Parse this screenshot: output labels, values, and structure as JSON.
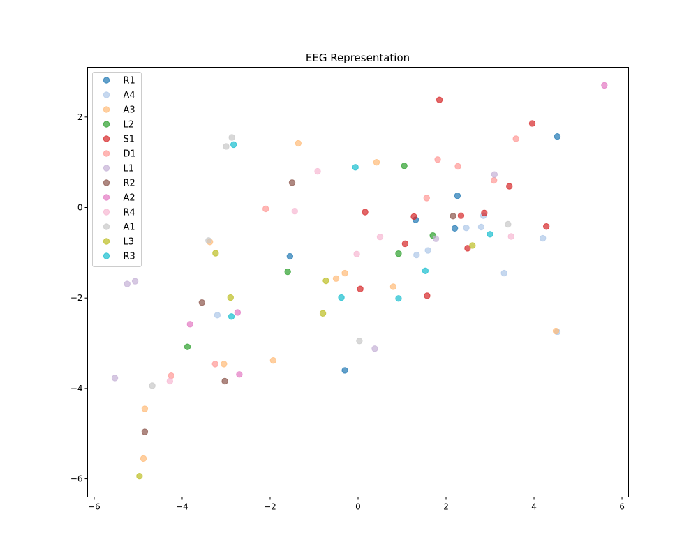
{
  "chart_data": {
    "type": "scatter",
    "title": "EEG Representation",
    "xlabel": "",
    "ylabel": "",
    "xlim": [
      -6.15,
      6.15
    ],
    "ylim": [
      -6.4,
      3.1
    ],
    "xticks": [
      -6,
      -4,
      -2,
      0,
      2,
      4,
      6
    ],
    "yticks": [
      -6,
      -4,
      -2,
      0,
      2
    ],
    "xtick_labels": [
      "−6",
      "−4",
      "−2",
      "0",
      "2",
      "4",
      "6"
    ],
    "ytick_labels": [
      "−6",
      "−4",
      "−2",
      "0",
      "2"
    ],
    "grid": false,
    "legend_position": "upper-left",
    "series": [
      {
        "name": "R1",
        "color": "#1f77b4",
        "points": [
          [
            4.53,
            1.57
          ],
          [
            2.26,
            0.26
          ],
          [
            1.31,
            -0.27
          ],
          [
            2.2,
            -0.46
          ],
          [
            -1.55,
            -1.08
          ],
          [
            -0.3,
            -3.6
          ]
        ]
      },
      {
        "name": "A4",
        "color": "#aec7e8",
        "points": [
          [
            2.85,
            -0.18
          ],
          [
            2.46,
            -0.45
          ],
          [
            2.8,
            -0.43
          ],
          [
            1.59,
            -0.95
          ],
          [
            1.33,
            -1.05
          ],
          [
            3.32,
            -1.45
          ],
          [
            4.2,
            -0.68
          ],
          [
            -3.2,
            -2.38
          ],
          [
            4.53,
            -2.75
          ]
        ]
      },
      {
        "name": "A3",
        "color": "#ffbb78",
        "points": [
          [
            -1.36,
            1.42
          ],
          [
            0.42,
            1.0
          ],
          [
            -3.37,
            -0.76
          ],
          [
            -0.3,
            -1.45
          ],
          [
            -0.5,
            -1.57
          ],
          [
            0.8,
            -1.75
          ],
          [
            -1.93,
            -3.38
          ],
          [
            -3.05,
            -3.46
          ],
          [
            4.5,
            -2.73
          ],
          [
            -4.85,
            -4.45
          ],
          [
            -4.88,
            -5.55
          ]
        ]
      },
      {
        "name": "L2",
        "color": "#2ca02c",
        "points": [
          [
            1.05,
            0.92
          ],
          [
            1.7,
            -0.62
          ],
          [
            0.92,
            -1.02
          ],
          [
            -1.6,
            -1.42
          ],
          [
            -3.88,
            -3.08
          ]
        ]
      },
      {
        "name": "S1",
        "color": "#d62728",
        "points": [
          [
            1.85,
            2.38
          ],
          [
            3.96,
            1.86
          ],
          [
            3.44,
            0.47
          ],
          [
            0.16,
            -0.1
          ],
          [
            1.27,
            -0.2
          ],
          [
            2.34,
            -0.18
          ],
          [
            2.87,
            -0.12
          ],
          [
            4.28,
            -0.42
          ],
          [
            1.07,
            -0.8
          ],
          [
            2.49,
            -0.9
          ],
          [
            0.05,
            -1.8
          ],
          [
            1.57,
            -1.95
          ]
        ]
      },
      {
        "name": "D1",
        "color": "#ff9896",
        "points": [
          [
            3.59,
            1.52
          ],
          [
            1.81,
            1.06
          ],
          [
            2.27,
            0.91
          ],
          [
            3.09,
            0.6
          ],
          [
            1.56,
            0.21
          ],
          [
            -2.1,
            -0.03
          ],
          [
            -4.25,
            -3.72
          ],
          [
            -3.25,
            -3.46
          ]
        ]
      },
      {
        "name": "L1",
        "color": "#c5b0d5",
        "points": [
          [
            3.1,
            0.73
          ],
          [
            1.77,
            -0.69
          ],
          [
            -5.07,
            -1.63
          ],
          [
            -5.25,
            -1.69
          ],
          [
            0.38,
            -3.12
          ],
          [
            -5.53,
            -3.77
          ]
        ]
      },
      {
        "name": "R2",
        "color": "#8c564b",
        "points": [
          [
            -1.5,
            0.55
          ],
          [
            2.16,
            -0.19
          ],
          [
            -3.55,
            -2.1
          ],
          [
            -3.03,
            -3.84
          ],
          [
            -4.85,
            -4.96
          ]
        ]
      },
      {
        "name": "A2",
        "color": "#e377c2",
        "points": [
          [
            5.6,
            2.7
          ],
          [
            -2.74,
            -2.32
          ],
          [
            -3.82,
            -2.58
          ],
          [
            -2.7,
            -3.69
          ]
        ]
      },
      {
        "name": "R4",
        "color": "#f7b6d2",
        "points": [
          [
            -0.92,
            0.8
          ],
          [
            -1.44,
            -0.08
          ],
          [
            0.5,
            -0.65
          ],
          [
            3.48,
            -0.64
          ],
          [
            -0.03,
            -1.03
          ],
          [
            -4.28,
            -3.84
          ]
        ]
      },
      {
        "name": "A1",
        "color": "#c7c7c7",
        "points": [
          [
            -2.87,
            1.55
          ],
          [
            -3.0,
            1.35
          ],
          [
            3.41,
            -0.37
          ],
          [
            -3.4,
            -0.73
          ],
          [
            0.03,
            -2.95
          ],
          [
            -4.68,
            -3.94
          ]
        ]
      },
      {
        "name": "L3",
        "color": "#bcbd22",
        "points": [
          [
            2.6,
            -0.84
          ],
          [
            -3.24,
            -1.01
          ],
          [
            -0.73,
            -1.62
          ],
          [
            -2.9,
            -1.99
          ],
          [
            -0.8,
            -2.34
          ],
          [
            -4.97,
            -5.94
          ]
        ]
      },
      {
        "name": "R3",
        "color": "#17becf",
        "points": [
          [
            -2.83,
            1.39
          ],
          [
            -0.06,
            0.89
          ],
          [
            3.0,
            -0.59
          ],
          [
            1.53,
            -1.4
          ],
          [
            -0.38,
            -1.99
          ],
          [
            0.92,
            -2.01
          ],
          [
            -2.88,
            -2.41
          ]
        ]
      }
    ]
  }
}
